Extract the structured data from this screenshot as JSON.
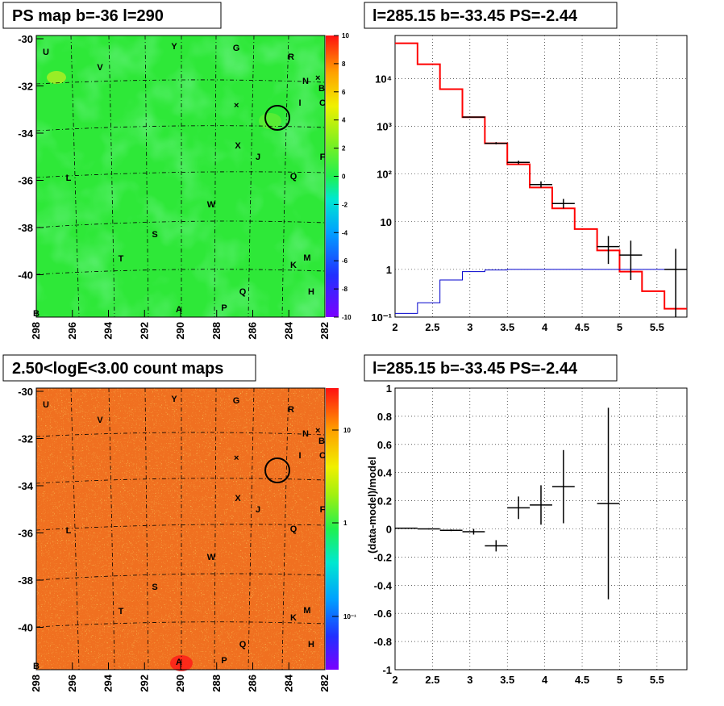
{
  "panels": {
    "map1": {
      "title": "PS map b=-36 l=290",
      "xticks": [
        "298",
        "296",
        "294",
        "292",
        "290",
        "288",
        "286",
        "284",
        "282"
      ],
      "yticks": [
        "-30",
        "-32",
        "-34",
        "-36",
        "-38",
        "-40"
      ],
      "colorbar_ticks": [
        "10",
        "8",
        "6",
        "4",
        "2",
        "0",
        "-2",
        "-4",
        "-6",
        "-8",
        "-10"
      ],
      "colorbar_range": [
        -10,
        10
      ],
      "background_color": "#2ee838"
    },
    "spectrum": {
      "title": "l=285.15 b=-33.45 PS=-2.44",
      "xticks": [
        "2",
        "2.5",
        "3",
        "3.5",
        "4",
        "4.5",
        "5",
        "5.5"
      ],
      "yticks": [
        "10⁻¹",
        "1",
        "10",
        "10²",
        "10³",
        "10⁴"
      ]
    },
    "map2": {
      "title": "2.50<logE<3.00 count maps",
      "xticks": [
        "298",
        "296",
        "294",
        "292",
        "290",
        "288",
        "286",
        "284",
        "282"
      ],
      "yticks": [
        "-30",
        "-32",
        "-34",
        "-36",
        "-38",
        "-40"
      ],
      "colorbar_ticks": [
        "10",
        "1",
        "10⁻¹"
      ]
    },
    "residual": {
      "title": "l=285.15 b=-33.45 PS=-2.44",
      "ylabel": "(data-model)/model",
      "xticks": [
        "2",
        "2.5",
        "3",
        "3.5",
        "4",
        "4.5",
        "5",
        "5.5"
      ],
      "yticks": [
        "1",
        "0.8",
        "0.6",
        "0.4",
        "0.2",
        "0",
        "-0.2",
        "-0.4",
        "-0.6",
        "-0.8",
        "-1"
      ]
    }
  },
  "source_labels": [
    "U",
    "V",
    "Y",
    "G",
    "R",
    "N",
    "B",
    "I",
    "C",
    "X",
    "J",
    "F",
    "L",
    "Q",
    "W",
    "S",
    "T",
    "M",
    "K",
    "Q",
    "H",
    "A",
    "P",
    "B"
  ],
  "chart_data": [
    {
      "type": "heatmap",
      "title": "PS map b=-36 l=290",
      "xlabel": "",
      "ylabel": "",
      "xlim": [
        298,
        282
      ],
      "ylim": [
        -41.8,
        -29.8
      ],
      "zlim": [
        -10,
        10
      ],
      "marked_source": {
        "l": 284.6,
        "b": -33.4
      }
    },
    {
      "type": "line",
      "title": "l=285.15 b=-33.45 PS=-2.44",
      "xlabel": "",
      "ylabel": "",
      "xlim": [
        2,
        5.9
      ],
      "ylim": [
        0.1,
        80000
      ],
      "yscale": "log",
      "bin_edges": [
        2.0,
        2.3,
        2.6,
        2.9,
        3.2,
        3.5,
        3.8,
        4.1,
        4.4,
        4.7,
        5.0,
        5.3,
        5.6,
        5.9
      ],
      "series": [
        {
          "values": [
            55000,
            20000,
            6000,
            1550,
            440,
            160,
            52,
            19,
            7,
            2.5,
            0.9,
            0.35,
            0.15
          ]
        },
        {
          "values": [
            0.12,
            0.2,
            0.6,
            0.9,
            0.97,
            1.0,
            1.0,
            1.0,
            1.0,
            1.0,
            1.0,
            1.0,
            1.0
          ]
        },
        {
          "points": [
            {
              "x": 3.05,
              "y": 1560
            },
            {
              "x": 3.35,
              "y": 440,
              "ylo": 420,
              "yhi": 465
            },
            {
              "x": 3.65,
              "y": 175,
              "ylo": 160,
              "yhi": 190
            },
            {
              "x": 3.95,
              "y": 60,
              "ylo": 52,
              "yhi": 70
            },
            {
              "x": 4.25,
              "y": 24,
              "ylo": 19,
              "yhi": 30
            },
            {
              "x": 4.85,
              "y": 3.0,
              "ylo": 1.3,
              "yhi": 5.0
            },
            {
              "x": 5.15,
              "y": 2.0,
              "ylo": 0.6,
              "yhi": 4.0
            },
            {
              "x": 5.75,
              "y": 1.0,
              "ylo": 0.1,
              "yhi": 2.7
            }
          ]
        }
      ]
    },
    {
      "type": "heatmap",
      "title": "2.50<logE<3.00 count maps",
      "xlabel": "",
      "ylabel": "",
      "xlim": [
        298,
        282
      ],
      "ylim": [
        -41.8,
        -29.8
      ],
      "zscale": "log",
      "zlim": [
        0.03,
        30
      ]
    },
    {
      "type": "scatter",
      "title": "l=285.15 b=-33.45 PS=-2.44",
      "xlabel": "",
      "ylabel": "(data-model)/model",
      "xlim": [
        2,
        5.9
      ],
      "ylim": [
        -1,
        1
      ],
      "points": [
        {
          "x": 2.15,
          "y": 0.005,
          "xerr": 0.15,
          "yerr": 0.003
        },
        {
          "x": 2.45,
          "y": 0.0,
          "xerr": 0.15,
          "yerr": 0.004
        },
        {
          "x": 2.75,
          "y": -0.01,
          "xerr": 0.15,
          "yerr": 0.006
        },
        {
          "x": 3.05,
          "y": -0.02,
          "xerr": 0.15,
          "yerr": 0.02
        },
        {
          "x": 3.35,
          "y": -0.12,
          "xerr": 0.15,
          "yerr": 0.04
        },
        {
          "x": 3.65,
          "y": 0.15,
          "xerr": 0.15,
          "yerr": 0.08
        },
        {
          "x": 3.95,
          "y": 0.17,
          "xerr": 0.15,
          "yerr": 0.14
        },
        {
          "x": 4.25,
          "y": 0.3,
          "xerr": 0.15,
          "yerr": 0.26
        },
        {
          "x": 4.85,
          "y": 0.18,
          "xerr": 0.15,
          "yerr": 0.68
        }
      ]
    }
  ]
}
